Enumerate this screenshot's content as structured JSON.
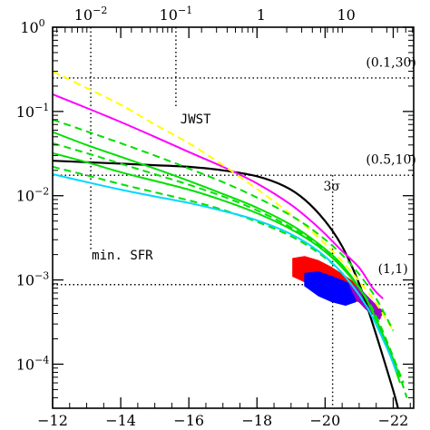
{
  "chart_data": {
    "type": "line",
    "title": "",
    "xlabel": "",
    "ylabel": "",
    "x_axis": {
      "range": [
        -12,
        -22.6
      ],
      "ticks": [
        -12,
        -14,
        -16,
        -18,
        -20,
        -22
      ],
      "tick_labels": [
        "−12",
        "−14",
        "−16",
        "−18",
        "−20",
        "−22"
      ]
    },
    "top_axis": {
      "scale": "log",
      "ticks": [
        {
          "x": -13.12,
          "label": "10",
          "sup": "−2"
        },
        {
          "x": -15.62,
          "label": "10",
          "sup": "−1"
        },
        {
          "x": -18.12,
          "label": "1",
          "sup": ""
        },
        {
          "x": -20.62,
          "label": "10",
          "sup": ""
        }
      ]
    },
    "y_axis": {
      "scale": "log",
      "range": [
        3e-05,
        1
      ],
      "ticks": [
        {
          "v": 1,
          "label": "10",
          "sup": "0"
        },
        {
          "v": 0.1,
          "label": "10",
          "sup": "−1"
        },
        {
          "v": 0.01,
          "label": "10",
          "sup": "−2"
        },
        {
          "v": 0.001,
          "label": "10",
          "sup": "−3"
        },
        {
          "v": 0.0001,
          "label": "10",
          "sup": "−4"
        }
      ]
    },
    "reference_lines": [
      {
        "orientation": "horizontal",
        "y": 0.25,
        "x_from": -12,
        "x_to": -22.6
      },
      {
        "orientation": "horizontal",
        "y": 0.0175,
        "x_from": -12,
        "x_to": -22.6
      },
      {
        "orientation": "horizontal",
        "y": 0.00088,
        "x_from": -12,
        "x_to": -22.6
      },
      {
        "orientation": "vertical",
        "x": -13.12,
        "y_from": 1,
        "y_to": 0.0022
      },
      {
        "orientation": "vertical",
        "x": -15.62,
        "y_from": 1,
        "y_to": 0.11
      },
      {
        "orientation": "vertical",
        "x": -20.22,
        "y_from": 0.0175,
        "y_to": 3e-05
      }
    ],
    "annotations": [
      {
        "text": "(0.1,30)",
        "x": -21.2,
        "y": 0.34,
        "font": "serif"
      },
      {
        "text": "(0.5,10)",
        "x": -21.2,
        "y": 0.024,
        "font": "serif"
      },
      {
        "text": "(1,1)",
        "x": -21.55,
        "y": 0.0012,
        "font": "serif"
      },
      {
        "text": "JWST",
        "x": -15.75,
        "y": 0.072,
        "font": "mono"
      },
      {
        "text": "min. SFR",
        "x": -13.15,
        "y": 0.00175,
        "font": "mono"
      },
      {
        "text": "3σ",
        "x": -19.95,
        "y": 0.0115,
        "font": "serif"
      }
    ],
    "series": [
      {
        "color": "#000000",
        "dash": false,
        "width": 2.2,
        "x": [
          -12,
          -13,
          -14,
          -15,
          -16,
          -17,
          -18,
          -18.8,
          -19.4,
          -20,
          -20.5,
          -21,
          -21.4,
          -21.8,
          -22.1,
          -22.3
        ],
        "y": [
          0.026,
          0.025,
          0.024,
          0.023,
          0.022,
          0.02,
          0.017,
          0.013,
          0.009,
          0.005,
          0.0025,
          0.0009,
          0.0003,
          9e-05,
          3.5e-05,
          1.5e-05
        ]
      },
      {
        "color": "#ff00ff",
        "dash": false,
        "width": 2,
        "x": [
          -12,
          -13,
          -14,
          -15,
          -16,
          -17,
          -18,
          -19,
          -19.8,
          -20.5,
          -21,
          -21.4,
          -21.7
        ],
        "y": [
          0.16,
          0.11,
          0.075,
          0.05,
          0.033,
          0.022,
          0.014,
          0.0078,
          0.0042,
          0.0022,
          0.0014,
          0.0008,
          0.0006
        ]
      },
      {
        "color": "#ffff00",
        "dash": true,
        "width": 2,
        "x": [
          -12,
          -13,
          -14,
          -15,
          -16,
          -17,
          -18,
          -19,
          -19.8,
          -20.6,
          -21.4,
          -22
        ],
        "y": [
          0.3,
          0.19,
          0.12,
          0.07,
          0.042,
          0.023,
          0.012,
          0.006,
          0.0032,
          0.0015,
          0.0006,
          0.00025
        ]
      },
      {
        "color": "#00e000",
        "dash": false,
        "width": 2,
        "x": [
          -12,
          -13,
          -14,
          -15,
          -16,
          -17,
          -18,
          -19,
          -19.8,
          -20.5,
          -21.2,
          -21.8,
          -22.2
        ],
        "y": [
          0.057,
          0.04,
          0.029,
          0.021,
          0.015,
          0.0105,
          0.0072,
          0.0045,
          0.0027,
          0.0015,
          0.0006,
          0.00018,
          7e-05
        ]
      },
      {
        "color": "#00e000",
        "dash": true,
        "width": 2,
        "x": [
          -12,
          -13,
          -14,
          -15,
          -16,
          -17,
          -18,
          -19,
          -19.8,
          -20.6,
          -21.4,
          -22
        ],
        "y": [
          0.08,
          0.058,
          0.042,
          0.03,
          0.021,
          0.0145,
          0.0095,
          0.0058,
          0.0035,
          0.0018,
          0.0007,
          0.00025
        ]
      },
      {
        "color": "#00e000",
        "dash": false,
        "width": 2,
        "x": [
          -12,
          -13,
          -14,
          -15,
          -16,
          -17,
          -18,
          -19,
          -19.8,
          -20.5,
          -21.2,
          -21.8,
          -22.2
        ],
        "y": [
          0.032,
          0.025,
          0.019,
          0.015,
          0.0118,
          0.0088,
          0.0062,
          0.004,
          0.0025,
          0.0014,
          0.0006,
          0.00017,
          6e-05
        ]
      },
      {
        "color": "#00e000",
        "dash": true,
        "width": 2,
        "x": [
          -12,
          -13,
          -14,
          -15,
          -16,
          -17,
          -18,
          -19,
          -19.8,
          -20.6,
          -21.4,
          -22.3
        ],
        "y": [
          0.042,
          0.032,
          0.024,
          0.018,
          0.0135,
          0.0098,
          0.0067,
          0.0042,
          0.0026,
          0.0013,
          0.00045,
          6e-05
        ]
      },
      {
        "color": "#00e000",
        "dash": true,
        "width": 2,
        "x": [
          -12,
          -13,
          -14,
          -15,
          -16,
          -17,
          -18,
          -19,
          -19.8,
          -20.5,
          -21.2,
          -21.9,
          -22.4
        ],
        "y": [
          0.022,
          0.0175,
          0.0137,
          0.011,
          0.0088,
          0.0068,
          0.0049,
          0.0033,
          0.0021,
          0.0012,
          0.0005,
          0.00015,
          4e-05
        ]
      },
      {
        "color": "#00d8ff",
        "dash": false,
        "width": 2,
        "x": [
          -12,
          -13,
          -14,
          -15,
          -16,
          -17,
          -18,
          -19,
          -19.8,
          -20.5,
          -21.2,
          -21.8,
          -22.1
        ],
        "y": [
          0.018,
          0.0145,
          0.0118,
          0.0098,
          0.0082,
          0.0066,
          0.0051,
          0.0035,
          0.0022,
          0.0012,
          0.0005,
          0.00016,
          8e-05
        ]
      }
    ],
    "filled_regions": [
      {
        "color": "#ff0000",
        "x": [
          -19.05,
          -19.4,
          -19.8,
          -20.2,
          -20.6,
          -21,
          -21.1,
          -21.0,
          -20.6,
          -20.2,
          -19.8,
          -19.4,
          -19.05
        ],
        "y": [
          0.0018,
          0.0019,
          0.0017,
          0.0014,
          0.0011,
          0.00085,
          0.00065,
          0.00055,
          0.0006,
          0.0007,
          0.0008,
          0.00095,
          0.0011
        ]
      },
      {
        "color": "#0000ff",
        "x": [
          -19.4,
          -19.8,
          -20.2,
          -20.6,
          -20.9,
          -20.9,
          -20.6,
          -20.2,
          -19.8,
          -19.4
        ],
        "y": [
          0.0012,
          0.00125,
          0.0011,
          0.00095,
          0.0008,
          0.00055,
          0.0005,
          0.00055,
          0.00065,
          0.00085
        ]
      },
      {
        "color": "#9a00cc",
        "x": [
          -20.7,
          -21.0,
          -21.4,
          -21.7,
          -21.6,
          -21.2,
          -20.9
        ],
        "y": [
          0.0009,
          0.0008,
          0.00055,
          0.00042,
          0.00034,
          0.00045,
          0.0006
        ]
      }
    ]
  }
}
